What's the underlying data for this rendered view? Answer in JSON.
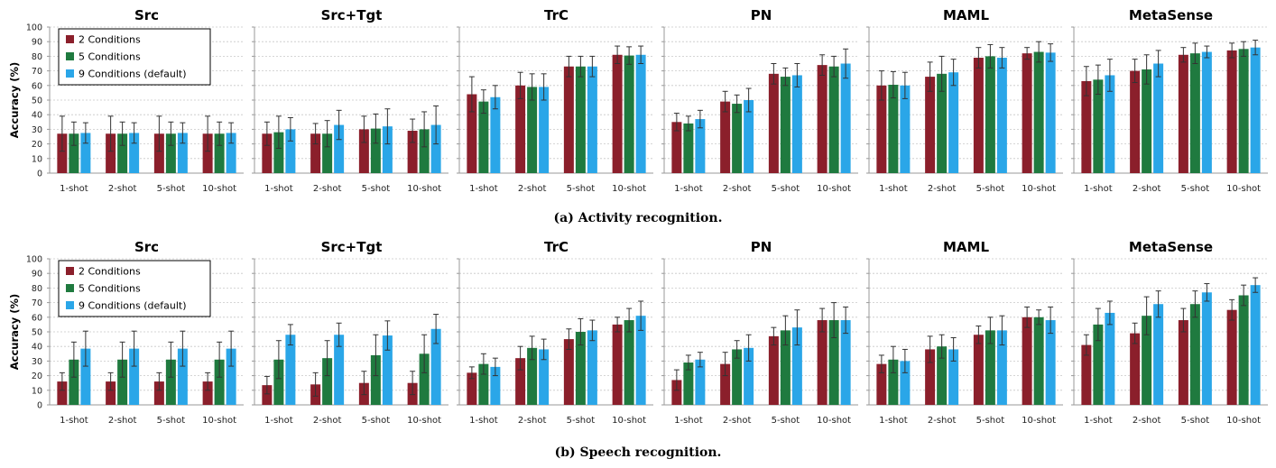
{
  "colors": {
    "s1": "#8b1f2b",
    "s2": "#1f7a3f",
    "s3": "#2aa6e8",
    "error": "#333333",
    "grid": "#c8c8c8"
  },
  "chart_data": [
    {
      "type": "bar",
      "caption": "(a) Activity recognition.",
      "ylabel": "Accuracy (%)",
      "ylim": [
        0,
        100
      ],
      "yticks": [
        0,
        10,
        20,
        30,
        40,
        50,
        60,
        70,
        80,
        90,
        100
      ],
      "categories": [
        "1-shot",
        "2-shot",
        "5-shot",
        "10-shot"
      ],
      "series_names": [
        "2 Conditions",
        "5 Conditions",
        "9 Conditions (default)"
      ],
      "legend_panel": 0,
      "grid": true,
      "panels": [
        {
          "title": "Src",
          "values": [
            [
              27,
              27,
              27,
              27
            ],
            [
              27,
              27,
              27,
              27
            ],
            [
              27.5,
              27.5,
              27.5,
              27.5
            ]
          ],
          "errors": [
            [
              12,
              12,
              12,
              12
            ],
            [
              8,
              8,
              8,
              8
            ],
            [
              7,
              7,
              7,
              7
            ]
          ]
        },
        {
          "title": "Src+Tgt",
          "values": [
            [
              27,
              27,
              30,
              29
            ],
            [
              28,
              27,
              30.5,
              30
            ],
            [
              30,
              33,
              32,
              33
            ]
          ],
          "errors": [
            [
              8,
              7,
              9,
              8
            ],
            [
              11,
              9,
              10,
              12
            ],
            [
              8,
              10,
              12,
              13
            ]
          ]
        },
        {
          "title": "TrC",
          "values": [
            [
              54,
              60,
              73,
              81
            ],
            [
              49,
              59,
              73,
              80.5
            ],
            [
              52,
              59,
              73,
              81
            ]
          ],
          "errors": [
            [
              12,
              9,
              7,
              6
            ],
            [
              8,
              9,
              7,
              6
            ],
            [
              8,
              9,
              7,
              6
            ]
          ]
        },
        {
          "title": "PN",
          "values": [
            [
              35,
              49,
              68,
              74
            ],
            [
              34,
              47.5,
              66,
              73
            ],
            [
              37,
              50,
              67,
              75
            ]
          ],
          "errors": [
            [
              6,
              7,
              7,
              7
            ],
            [
              5,
              6,
              6,
              7
            ],
            [
              6,
              8,
              8,
              10
            ]
          ]
        },
        {
          "title": "MAML",
          "values": [
            [
              60,
              66,
              79,
              82
            ],
            [
              60.5,
              68,
              80,
              83
            ],
            [
              60,
              69,
              79,
              82.5
            ]
          ],
          "errors": [
            [
              10,
              10,
              7,
              4
            ],
            [
              9,
              12,
              8,
              7
            ],
            [
              9,
              9,
              7,
              6
            ]
          ]
        },
        {
          "title": "MetaSense",
          "values": [
            [
              63,
              70,
              81,
              84
            ],
            [
              64,
              71,
              82,
              85
            ],
            [
              67,
              75,
              83,
              86
            ]
          ],
          "errors": [
            [
              10,
              8,
              5,
              5
            ],
            [
              10,
              10,
              7,
              5
            ],
            [
              11,
              9,
              4,
              5
            ]
          ]
        }
      ]
    },
    {
      "type": "bar",
      "caption": "(b) Speech recognition.",
      "ylabel": "Accuracy (%)",
      "ylim": [
        0,
        100
      ],
      "yticks": [
        0,
        10,
        20,
        30,
        40,
        50,
        60,
        70,
        80,
        90,
        100
      ],
      "categories": [
        "1-shot",
        "2-shot",
        "5-shot",
        "10-shot"
      ],
      "series_names": [
        "2 Conditions",
        "5 Conditions",
        "9 Conditions (default)"
      ],
      "legend_panel": 0,
      "grid": true,
      "panels": [
        {
          "title": "Src",
          "values": [
            [
              16,
              16,
              16,
              16
            ],
            [
              31,
              31,
              31,
              31
            ],
            [
              38.5,
              38.5,
              38.5,
              38.5
            ]
          ],
          "errors": [
            [
              6,
              6,
              6,
              6
            ],
            [
              12,
              12,
              12,
              12
            ],
            [
              12,
              12,
              12,
              12
            ]
          ]
        },
        {
          "title": "Src+Tgt",
          "values": [
            [
              13.5,
              14,
              15,
              15
            ],
            [
              31,
              32,
              34,
              35
            ],
            [
              48,
              48,
              47.5,
              52
            ]
          ],
          "errors": [
            [
              6,
              8,
              8,
              8
            ],
            [
              13,
              12,
              14,
              13
            ],
            [
              7,
              8,
              10,
              10
            ]
          ]
        },
        {
          "title": "TrC",
          "values": [
            [
              22,
              32,
              45,
              55
            ],
            [
              28,
              39,
              50,
              58
            ],
            [
              26,
              38,
              51,
              61
            ]
          ],
          "errors": [
            [
              4,
              8,
              7,
              5
            ],
            [
              7,
              8,
              9,
              8
            ],
            [
              6,
              7,
              7,
              10
            ]
          ]
        },
        {
          "title": "PN",
          "values": [
            [
              17,
              28,
              47,
              58
            ],
            [
              29,
              38,
              51,
              58
            ],
            [
              31,
              39,
              53,
              58
            ]
          ],
          "errors": [
            [
              7,
              8,
              6,
              8
            ],
            [
              5,
              6,
              10,
              12
            ],
            [
              5,
              9,
              12,
              9
            ]
          ]
        },
        {
          "title": "MAML",
          "values": [
            [
              28,
              38,
              48,
              60
            ],
            [
              31,
              40,
              51,
              60
            ],
            [
              30,
              38,
              51,
              58
            ]
          ],
          "errors": [
            [
              6,
              9,
              6,
              7
            ],
            [
              9,
              8,
              9,
              5
            ],
            [
              8,
              8,
              10,
              9
            ]
          ]
        },
        {
          "title": "MetaSense",
          "values": [
            [
              41,
              49,
              58,
              65
            ],
            [
              55,
              61,
              69,
              75
            ],
            [
              63,
              69,
              77,
              82
            ]
          ],
          "errors": [
            [
              7,
              7,
              8,
              7
            ],
            [
              11,
              13,
              9,
              7
            ],
            [
              8,
              9,
              6,
              5
            ]
          ]
        }
      ]
    }
  ]
}
